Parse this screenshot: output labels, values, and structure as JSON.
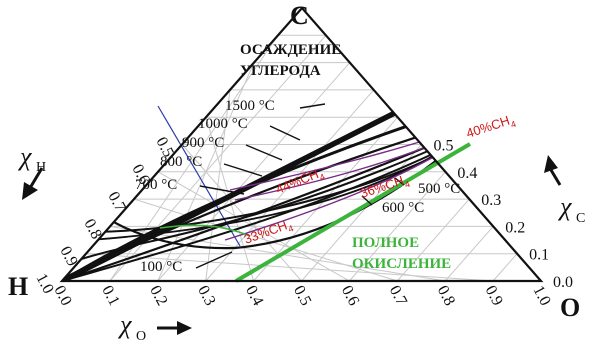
{
  "corners": {
    "top": "C",
    "left": "H",
    "right": "O"
  },
  "region_labels": {
    "deposition_line1": "ОСАЖДЕНИЕ",
    "deposition_line2": "УГЛЕРОДА",
    "oxidation_line1": "ПОЛНОЕ",
    "oxidation_line2": "ОКИСЛЕНИЕ"
  },
  "axes": {
    "xH": {
      "symbol": "χ",
      "sub": "H"
    },
    "xC": {
      "symbol": "χ",
      "sub": "C"
    },
    "xO": {
      "symbol": "χ",
      "sub": "O"
    }
  },
  "ticks_right": [
    "0.0",
    "0.1",
    "0.2",
    "0.3",
    "0.4",
    "0.5"
  ],
  "ticks_bottom": [
    "0.0",
    "0.1",
    "0.2",
    "0.3",
    "0.4",
    "0.5",
    "0.6",
    "0.7",
    "0.8",
    "0.9",
    "1.0"
  ],
  "ticks_left": [
    "1.0",
    "0.9",
    "0.8",
    "0.7",
    "0.6",
    "0.5"
  ],
  "temperature_labels": [
    "1500 °C",
    "1000 °C",
    "900 °C",
    "800 °C",
    "700 °C",
    "100 °C",
    "500 °C",
    "600 °C"
  ],
  "methane_labels": [
    "40%CH",
    "44%CH",
    "36%CH",
    "33%CH"
  ],
  "methane_sub": "4",
  "colors": {
    "boundary": "#111111",
    "grid": "#c8c8c8",
    "oxidation_line": "#3cb43c",
    "methane_text": "#d01818",
    "methane_curve": "#7a2a8a",
    "blue_line": "#2a3ab0"
  }
}
